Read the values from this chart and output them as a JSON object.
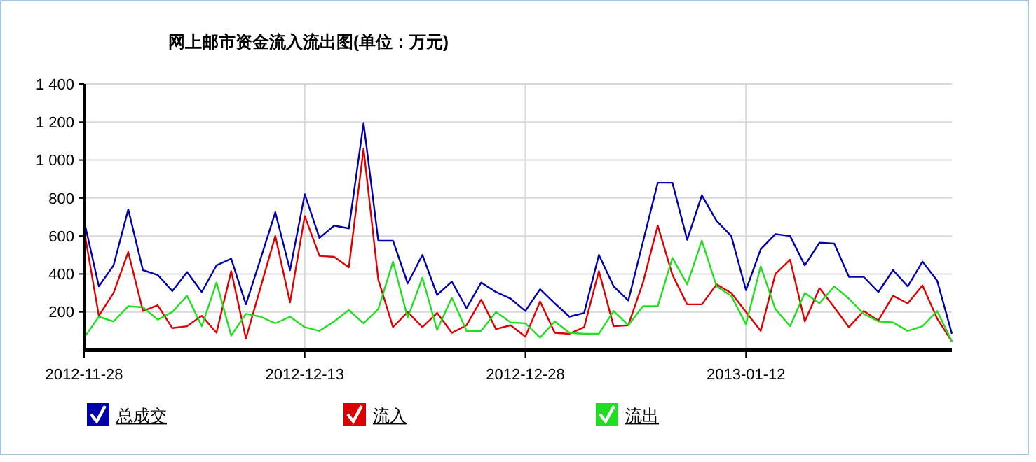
{
  "chart_data": {
    "type": "line",
    "title": "网上邮市资金流入流出图(单位：万元)",
    "x": [
      "2012-11-28",
      "2012-11-29",
      "2012-11-30",
      "2012-12-01",
      "2012-12-02",
      "2012-12-03",
      "2012-12-04",
      "2012-12-05",
      "2012-12-06",
      "2012-12-07",
      "2012-12-08",
      "2012-12-09",
      "2012-12-10",
      "2012-12-11",
      "2012-12-12",
      "2012-12-13",
      "2012-12-14",
      "2012-12-15",
      "2012-12-16",
      "2012-12-17",
      "2012-12-18",
      "2012-12-19",
      "2012-12-20",
      "2012-12-21",
      "2012-12-22",
      "2012-12-23",
      "2012-12-24",
      "2012-12-25",
      "2012-12-26",
      "2012-12-27",
      "2012-12-28",
      "2012-12-29",
      "2012-12-30",
      "2012-12-31",
      "2013-01-01",
      "2013-01-02",
      "2013-01-03",
      "2013-01-04",
      "2013-01-05",
      "2013-01-06",
      "2013-01-07",
      "2013-01-08",
      "2013-01-09",
      "2013-01-10",
      "2013-01-11",
      "2013-01-12",
      "2013-01-13",
      "2013-01-14",
      "2013-01-15",
      "2013-01-16",
      "2013-01-17",
      "2013-01-18",
      "2013-01-19",
      "2013-01-20",
      "2013-01-21",
      "2013-01-22",
      "2013-01-23",
      "2013-01-24",
      "2013-01-25",
      "2013-01-26"
    ],
    "series": [
      {
        "name": "总成交",
        "color": "#0000aa",
        "values": [
          680,
          335,
          445,
          740,
          420,
          395,
          310,
          410,
          305,
          445,
          480,
          240,
          480,
          725,
          420,
          820,
          590,
          655,
          640,
          1195,
          575,
          575,
          350,
          500,
          290,
          360,
          220,
          355,
          305,
          270,
          205,
          320,
          245,
          175,
          195,
          500,
          335,
          260,
          570,
          880,
          880,
          580,
          815,
          680,
          600,
          315,
          530,
          610,
          600,
          445,
          565,
          560,
          385,
          385,
          305,
          420,
          335,
          465,
          365,
          85
        ]
      },
      {
        "name": "流入",
        "color": "#dd0000",
        "values": [
          630,
          180,
          300,
          515,
          205,
          235,
          115,
          125,
          180,
          90,
          415,
          60,
          330,
          600,
          250,
          705,
          495,
          490,
          435,
          1060,
          370,
          120,
          200,
          120,
          195,
          90,
          130,
          265,
          110,
          130,
          70,
          255,
          90,
          85,
          120,
          415,
          125,
          130,
          355,
          655,
          395,
          240,
          240,
          345,
          300,
          200,
          100,
          400,
          475,
          150,
          325,
          225,
          120,
          205,
          155,
          285,
          245,
          340,
          165,
          45
        ]
      },
      {
        "name": "流出",
        "color": "#22dd22",
        "values": [
          65,
          175,
          150,
          230,
          225,
          160,
          200,
          285,
          125,
          355,
          75,
          190,
          175,
          140,
          175,
          120,
          100,
          150,
          210,
          140,
          215,
          465,
          170,
          380,
          105,
          275,
          100,
          100,
          200,
          145,
          140,
          65,
          150,
          90,
          85,
          85,
          205,
          130,
          230,
          230,
          485,
          345,
          575,
          335,
          285,
          135,
          440,
          215,
          125,
          300,
          245,
          335,
          270,
          190,
          150,
          145,
          100,
          125,
          205,
          45
        ]
      }
    ],
    "xlim": [
      "2012-11-28",
      "2013-01-26"
    ],
    "xticks": [
      "2012-11-28",
      "2012-12-13",
      "2012-12-28",
      "2013-01-12"
    ],
    "ylim": [
      0,
      1400
    ],
    "yticks": [
      {
        "value": 200,
        "label": "200"
      },
      {
        "value": 400,
        "label": "400"
      },
      {
        "value": 600,
        "label": "600"
      },
      {
        "value": 800,
        "label": "800"
      },
      {
        "value": 1000,
        "label": "1 000"
      },
      {
        "value": 1200,
        "label": "1 200"
      },
      {
        "value": 1400,
        "label": "1 400"
      }
    ],
    "grid": true,
    "legend": "bottom",
    "marker": "none",
    "line_style": "solid"
  }
}
